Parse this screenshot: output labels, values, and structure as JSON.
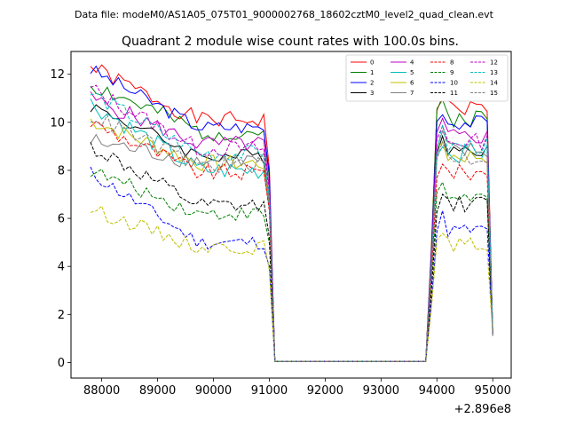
{
  "page": {
    "suptitle": "Data file: modeM0/AS1A05_075T01_9000002768_18602cztM0_level2_quad_clean.evt",
    "title": "Quadrant 2 module wise count rates with 100.0s bins.",
    "x_offset_label": "+2.896e8"
  },
  "chart_data": {
    "type": "line",
    "title": "Quadrant 2 module wise count rates with 100.0s bins.",
    "xlabel": "",
    "ylabel": "",
    "x_offset": 289600000,
    "xlim": [
      87450,
      95330
    ],
    "ylim": [
      -0.65,
      12.95
    ],
    "xticks": [
      88000,
      89000,
      90000,
      91000,
      92000,
      93000,
      94000,
      95000
    ],
    "yticks": [
      0,
      2,
      4,
      6,
      8,
      10,
      12
    ],
    "grid": false,
    "legend_position": "top-right",
    "legend_columns": 4,
    "series": [
      {
        "name": "0",
        "color": "#ff0000",
        "dash": "solid",
        "start": 12.3,
        "plateau": 10.1,
        "hi": 10.6,
        "noise": 0.35,
        "seed": 1
      },
      {
        "name": "1",
        "color": "#008000",
        "dash": "solid",
        "start": 11.6,
        "plateau": 9.6,
        "hi": 10.2,
        "noise": 0.4,
        "seed": 2
      },
      {
        "name": "2",
        "color": "#0000ff",
        "dash": "solid",
        "start": 12.2,
        "plateau": 9.8,
        "hi": 10.0,
        "noise": 0.3,
        "seed": 3
      },
      {
        "name": "3",
        "color": "#000000",
        "dash": "solid",
        "start": 10.7,
        "plateau": 8.6,
        "hi": 8.9,
        "noise": 0.3,
        "seed": 4
      },
      {
        "name": "4",
        "color": "#bf00bf",
        "dash": "solid",
        "start": 11.0,
        "plateau": 9.1,
        "hi": 9.4,
        "noise": 0.35,
        "seed": 5
      },
      {
        "name": "5",
        "color": "#00bfbf",
        "dash": "solid",
        "start": 10.8,
        "plateau": 8.0,
        "hi": 8.7,
        "noise": 0.4,
        "seed": 6
      },
      {
        "name": "6",
        "color": "#bfbf00",
        "dash": "solid",
        "start": 10.1,
        "plateau": 8.3,
        "hi": 8.6,
        "noise": 0.35,
        "seed": 7
      },
      {
        "name": "7",
        "color": "#808080",
        "dash": "solid",
        "start": 9.2,
        "plateau": 8.4,
        "hi": 8.8,
        "noise": 0.4,
        "seed": 8
      },
      {
        "name": "8",
        "color": "#ff0000",
        "dash": "dashed",
        "start": 10.0,
        "plateau": 7.9,
        "hi": 7.9,
        "noise": 0.35,
        "seed": 9
      },
      {
        "name": "9",
        "color": "#008000",
        "dash": "dashed",
        "start": 8.0,
        "plateau": 6.2,
        "hi": 6.9,
        "noise": 0.3,
        "seed": 10
      },
      {
        "name": "10",
        "color": "#0000ff",
        "dash": "dashed",
        "start": 7.9,
        "plateau": 5.0,
        "hi": 5.5,
        "noise": 0.3,
        "seed": 11
      },
      {
        "name": "11",
        "color": "#000000",
        "dash": "dashed",
        "start": 9.0,
        "plateau": 6.5,
        "hi": 6.6,
        "noise": 0.35,
        "seed": 12
      },
      {
        "name": "12",
        "color": "#bf00bf",
        "dash": "dashed",
        "start": 11.4,
        "plateau": 8.9,
        "hi": 9.2,
        "noise": 0.35,
        "seed": 13
      },
      {
        "name": "13",
        "color": "#00bfbf",
        "dash": "dashed",
        "start": 11.2,
        "plateau": 8.7,
        "hi": 9.0,
        "noise": 0.35,
        "seed": 14
      },
      {
        "name": "14",
        "color": "#bfbf00",
        "dash": "dashed",
        "start": 6.4,
        "plateau": 4.8,
        "hi": 4.9,
        "noise": 0.3,
        "seed": 15
      },
      {
        "name": "15",
        "color": "#808080",
        "dash": "dashed",
        "start": 10.3,
        "plateau": 8.2,
        "hi": 8.5,
        "noise": 0.35,
        "seed": 16
      }
    ],
    "shape": {
      "first_x": 87800,
      "step": 100,
      "active1_end": 90900,
      "drop_x": 91000,
      "zero_start": 91100,
      "zero_end": 93800,
      "rise_x": 93900,
      "active2_start": 94000,
      "last_x": 95000
    }
  }
}
